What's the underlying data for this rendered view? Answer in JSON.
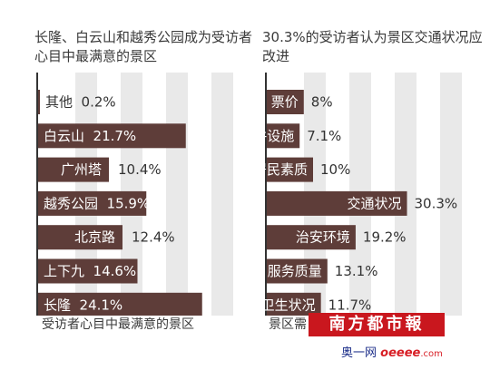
{
  "chart_data": [
    {
      "type": "bar",
      "orientation": "horizontal",
      "title": "长隆、白云山和越秀公园成为受访者心目中最满意的景区",
      "caption": "受访者心目中最满意的景区",
      "categories": [
        "其他",
        "白云山",
        "广州塔",
        "越秀公园",
        "北京路",
        "上下九",
        "长隆"
      ],
      "values": [
        0.2,
        21.7,
        10.4,
        15.9,
        12.4,
        14.6,
        24.1
      ],
      "value_labels": [
        "0.2%",
        "21.7%",
        "10.4%",
        "15.9%",
        "12.4%",
        "14.6%",
        "24.1%"
      ],
      "bar_color": "#5e3d39",
      "grid": true
    },
    {
      "type": "bar",
      "orientation": "horizontal",
      "title": "30.3%的受访者认为景区交通状况应改进",
      "caption": "景区需",
      "categories": [
        "票价",
        "硬件设施",
        "居民素质",
        "交通状况",
        "治安环境",
        "服务质量",
        "卫生状况"
      ],
      "values": [
        8,
        7.1,
        10,
        30.3,
        19.2,
        13.1,
        11.7
      ],
      "value_labels": [
        "8%",
        "7.1%",
        "10%",
        "30.3%",
        "19.2%",
        "13.1%",
        "11.7%"
      ],
      "bar_color": "#5e3d39",
      "grid": true
    }
  ],
  "watermark": {
    "logo_text": "南方都市報",
    "site_prefix": "奥一网",
    "site_domain": "oeeee",
    "site_tld": ".com"
  }
}
